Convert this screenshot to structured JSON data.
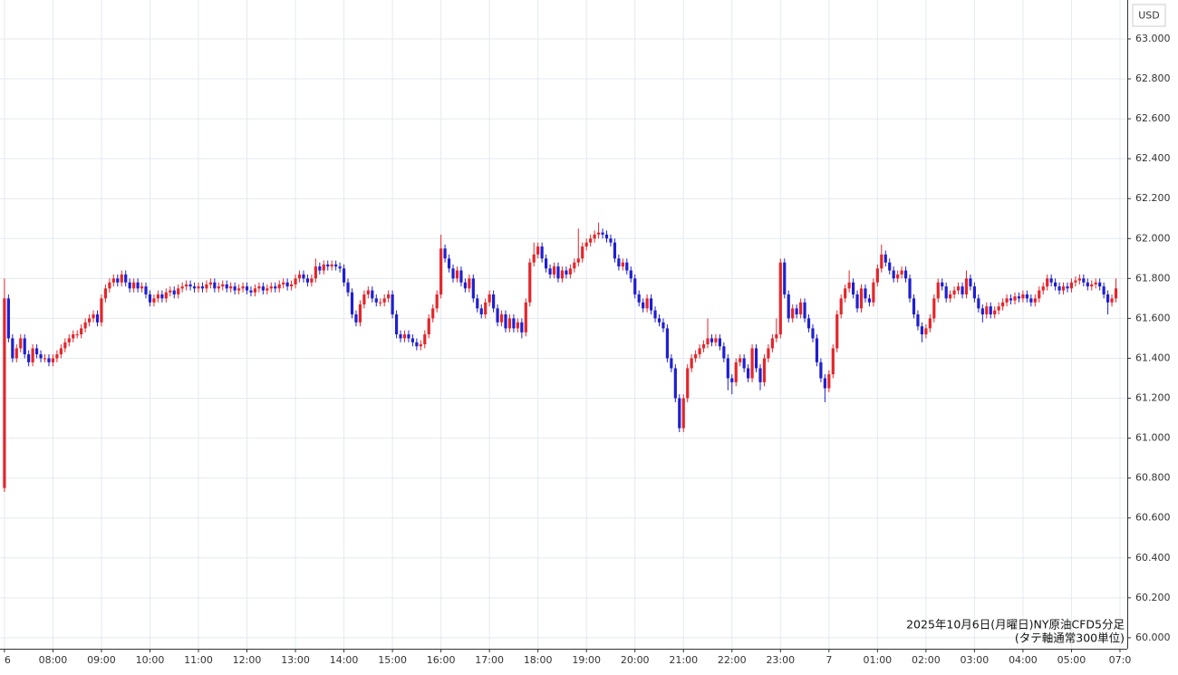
{
  "chart_data": {
    "type": "candlestick",
    "currency": "USD",
    "annotation": [
      "2025年10月6日(月曜日)NY原油CFD5分足",
      "(タテ軸通常300単位)"
    ],
    "up_color": "#e3262b",
    "down_color": "#1f1fcf",
    "grid": true,
    "ylim": [
      59.945,
      63.195
    ],
    "yticks": [
      {
        "value": 60,
        "label": "60.000"
      },
      {
        "value": 60.2,
        "label": "60.200"
      },
      {
        "value": 60.4,
        "label": "60.400"
      },
      {
        "value": 60.6,
        "label": "60.600"
      },
      {
        "value": 60.8,
        "label": "60.800"
      },
      {
        "value": 61,
        "label": "61.000"
      },
      {
        "value": 61.2,
        "label": "61.200"
      },
      {
        "value": 61.4,
        "label": "61.400"
      },
      {
        "value": 61.6,
        "label": "61.600"
      },
      {
        "value": 61.8,
        "label": "61.800"
      },
      {
        "value": 62,
        "label": "62.000"
      },
      {
        "value": 62.2,
        "label": "62.200"
      },
      {
        "value": 62.4,
        "label": "62.400"
      },
      {
        "value": 62.6,
        "label": "62.600"
      },
      {
        "value": 62.8,
        "label": "62.800"
      },
      {
        "value": 63,
        "label": "63.000"
      }
    ],
    "xlim": [
      -1.1,
      277.8
    ],
    "xticks": [
      {
        "value": 0,
        "label": "6"
      },
      {
        "value": 12,
        "label": "08:00"
      },
      {
        "value": 24,
        "label": "09:00"
      },
      {
        "value": 36,
        "label": "10:00"
      },
      {
        "value": 48,
        "label": "11:00"
      },
      {
        "value": 60,
        "label": "12:00"
      },
      {
        "value": 72,
        "label": "13:00"
      },
      {
        "value": 84,
        "label": "14:00"
      },
      {
        "value": 96,
        "label": "15:00"
      },
      {
        "value": 108,
        "label": "16:00"
      },
      {
        "value": 120,
        "label": "17:00"
      },
      {
        "value": 132,
        "label": "18:00"
      },
      {
        "value": 144,
        "label": "19:00"
      },
      {
        "value": 156,
        "label": "20:00"
      },
      {
        "value": 168,
        "label": "21:00"
      },
      {
        "value": 180,
        "label": "22:00"
      },
      {
        "value": 192,
        "label": "23:00"
      },
      {
        "value": 204,
        "label": "7"
      },
      {
        "value": 216,
        "label": "01:00"
      },
      {
        "value": 228,
        "label": "02:00"
      },
      {
        "value": 240,
        "label": "03:00"
      },
      {
        "value": 252,
        "label": "04:00"
      },
      {
        "value": 264,
        "label": "05:00"
      },
      {
        "value": 276,
        "label": "07:0"
      }
    ],
    "open": [
      60.75,
      61.7,
      61.5,
      61.4,
      61.45,
      61.5,
      61.42,
      61.38,
      61.45,
      61.42,
      61.4,
      61.4,
      61.38,
      61.4,
      61.42,
      61.45,
      61.48,
      61.5,
      61.52,
      61.52,
      61.55,
      61.58,
      61.6,
      61.62,
      61.58,
      61.7,
      61.75,
      61.78,
      61.8,
      61.78,
      61.82,
      61.78,
      61.75,
      61.78,
      61.75,
      61.76,
      61.72,
      61.68,
      61.7,
      61.72,
      61.7,
      61.73,
      61.74,
      61.72,
      61.75,
      61.76,
      61.77,
      61.76,
      61.75,
      61.76,
      61.75,
      61.77,
      61.78,
      61.75,
      61.76,
      61.77,
      61.75,
      61.76,
      61.74,
      61.75,
      61.76,
      61.74,
      61.73,
      61.75,
      61.76,
      61.74,
      61.75,
      61.76,
      61.75,
      61.77,
      61.78,
      61.76,
      61.77,
      61.8,
      61.82,
      61.8,
      61.78,
      61.8,
      61.86,
      61.84,
      61.87,
      61.86,
      61.87,
      61.86,
      61.85,
      61.78,
      61.73,
      61.62,
      61.58,
      61.67,
      61.72,
      61.74,
      61.7,
      61.68,
      61.68,
      61.7,
      61.72,
      61.62,
      61.52,
      61.5,
      61.52,
      61.5,
      61.48,
      61.46,
      61.47,
      61.52,
      61.6,
      61.65,
      61.72,
      61.95,
      61.9,
      61.85,
      61.8,
      61.84,
      61.78,
      61.75,
      61.8,
      61.7,
      61.65,
      61.62,
      61.68,
      61.72,
      61.65,
      61.58,
      61.62,
      61.55,
      61.6,
      61.55,
      61.58,
      61.53,
      61.68,
      61.88,
      61.92,
      61.96,
      61.9,
      61.85,
      61.82,
      61.86,
      61.8,
      61.84,
      61.82,
      61.85,
      61.88,
      61.9,
      61.96,
      61.98,
      62.0,
      62.02,
      62.03,
      62.02,
      62.0,
      61.98,
      61.9,
      61.86,
      61.88,
      61.84,
      61.8,
      61.72,
      61.68,
      61.65,
      61.7,
      61.64,
      61.6,
      61.58,
      61.55,
      61.4,
      61.35,
      61.2,
      61.05,
      61.2,
      61.35,
      61.4,
      61.42,
      61.45,
      61.47,
      61.5,
      61.48,
      61.5,
      61.46,
      61.4,
      61.3,
      61.28,
      61.38,
      61.4,
      61.35,
      61.3,
      61.45,
      61.35,
      61.28,
      61.4,
      61.45,
      61.5,
      61.52,
      61.88,
      61.72,
      61.6,
      61.65,
      61.62,
      61.68,
      61.6,
      61.55,
      61.5,
      61.38,
      61.3,
      61.25,
      61.32,
      61.45,
      61.62,
      61.7,
      61.75,
      61.78,
      61.72,
      61.65,
      61.75,
      61.7,
      61.68,
      61.78,
      61.85,
      61.92,
      61.88,
      61.84,
      61.8,
      61.82,
      61.84,
      61.8,
      61.7,
      61.62,
      61.56,
      61.52,
      61.55,
      61.6,
      61.7,
      61.78,
      61.76,
      61.7,
      61.72,
      61.74,
      61.76,
      61.72,
      61.8,
      61.76,
      61.7,
      61.65,
      61.62,
      61.66,
      61.62,
      61.64,
      61.66,
      61.68,
      61.7,
      61.69,
      61.71,
      61.7,
      61.72,
      61.7,
      61.68,
      61.7,
      61.74,
      61.76,
      61.8,
      61.78,
      61.76,
      61.74,
      61.76,
      61.75,
      61.78,
      61.79,
      61.8,
      61.78,
      61.76,
      61.77,
      61.78,
      61.76,
      61.72,
      61.68,
      61.7
    ],
    "high": [
      61.8,
      61.72,
      61.52,
      61.47,
      61.52,
      61.52,
      61.44,
      61.47,
      61.47,
      61.44,
      61.42,
      61.42,
      61.42,
      61.44,
      61.47,
      61.5,
      61.52,
      61.54,
      61.54,
      61.57,
      61.6,
      61.62,
      61.64,
      61.64,
      61.72,
      61.77,
      61.8,
      61.82,
      61.82,
      61.84,
      61.84,
      61.8,
      61.8,
      61.8,
      61.78,
      61.78,
      61.74,
      61.72,
      61.74,
      61.74,
      61.75,
      61.76,
      61.76,
      61.77,
      61.78,
      61.79,
      61.79,
      61.78,
      61.78,
      61.78,
      61.79,
      61.8,
      61.8,
      61.78,
      61.79,
      61.79,
      61.78,
      61.78,
      61.77,
      61.78,
      61.78,
      61.76,
      61.77,
      61.78,
      61.78,
      61.77,
      61.78,
      61.78,
      61.79,
      61.8,
      61.8,
      61.79,
      61.82,
      61.84,
      61.84,
      61.82,
      61.82,
      61.9,
      61.88,
      61.89,
      61.89,
      61.89,
      61.89,
      61.88,
      61.87,
      61.8,
      61.75,
      61.64,
      61.69,
      61.74,
      61.76,
      61.76,
      61.72,
      61.7,
      61.72,
      61.74,
      61.74,
      61.64,
      61.54,
      61.54,
      61.54,
      61.52,
      61.5,
      61.49,
      61.54,
      61.62,
      61.67,
      61.74,
      62.02,
      61.97,
      61.92,
      61.87,
      61.86,
      61.86,
      61.8,
      61.82,
      61.82,
      61.72,
      61.67,
      61.7,
      61.74,
      61.74,
      61.67,
      61.64,
      61.64,
      61.62,
      61.62,
      61.6,
      61.6,
      61.7,
      61.9,
      61.98,
      61.98,
      61.98,
      61.92,
      61.87,
      61.88,
      61.88,
      61.86,
      61.86,
      61.87,
      61.9,
      62.05,
      61.98,
      62.0,
      62.02,
      62.04,
      62.08,
      62.05,
      62.04,
      62.02,
      62.0,
      61.92,
      61.9,
      61.9,
      61.86,
      61.82,
      61.74,
      61.7,
      61.72,
      61.72,
      61.66,
      61.62,
      61.6,
      61.57,
      61.42,
      61.37,
      61.22,
      61.22,
      61.37,
      61.42,
      61.44,
      61.47,
      61.49,
      61.6,
      61.52,
      61.52,
      61.52,
      61.48,
      61.42,
      61.32,
      61.4,
      61.42,
      61.42,
      61.37,
      61.47,
      61.47,
      61.37,
      61.42,
      61.47,
      61.52,
      61.6,
      61.9,
      61.9,
      61.74,
      61.67,
      61.67,
      61.7,
      61.7,
      61.62,
      61.57,
      61.52,
      61.4,
      61.32,
      61.34,
      61.47,
      61.64,
      61.72,
      61.77,
      61.84,
      61.8,
      61.74,
      61.77,
      61.77,
      61.72,
      61.8,
      61.87,
      61.97,
      61.94,
      61.9,
      61.86,
      61.84,
      61.86,
      61.86,
      61.82,
      61.72,
      61.64,
      61.58,
      61.57,
      61.62,
      61.72,
      61.8,
      61.8,
      61.78,
      61.74,
      61.76,
      61.78,
      61.78,
      61.84,
      61.82,
      61.78,
      61.72,
      61.67,
      61.68,
      61.68,
      61.66,
      61.68,
      61.7,
      61.72,
      61.72,
      61.73,
      61.73,
      61.74,
      61.74,
      61.72,
      61.72,
      61.76,
      61.78,
      61.82,
      61.82,
      61.8,
      61.78,
      61.78,
      61.78,
      61.8,
      61.81,
      61.82,
      61.82,
      61.8,
      61.79,
      61.8,
      61.8,
      61.78,
      61.74,
      61.72,
      61.8
    ],
    "low": [
      60.73,
      61.48,
      61.38,
      61.38,
      61.43,
      61.4,
      61.36,
      61.36,
      61.4,
      61.38,
      61.38,
      61.36,
      61.36,
      61.38,
      61.4,
      61.43,
      61.46,
      61.48,
      61.5,
      61.5,
      61.53,
      61.56,
      61.58,
      61.56,
      61.56,
      61.68,
      61.73,
      61.76,
      61.76,
      61.76,
      61.76,
      61.73,
      61.73,
      61.73,
      61.73,
      61.7,
      61.66,
      61.66,
      61.68,
      61.68,
      61.68,
      61.71,
      61.7,
      61.7,
      61.73,
      61.74,
      61.74,
      61.73,
      61.73,
      61.73,
      61.73,
      61.75,
      61.73,
      61.73,
      61.74,
      61.73,
      61.73,
      61.72,
      61.72,
      61.73,
      61.72,
      61.71,
      61.71,
      61.73,
      61.72,
      61.72,
      61.73,
      61.73,
      61.73,
      61.75,
      61.74,
      61.74,
      61.75,
      61.78,
      61.78,
      61.76,
      61.76,
      61.78,
      61.82,
      61.82,
      61.84,
      61.84,
      61.84,
      61.83,
      61.76,
      61.71,
      61.6,
      61.56,
      61.56,
      61.65,
      61.7,
      61.68,
      61.66,
      61.66,
      61.66,
      61.68,
      61.6,
      61.5,
      61.48,
      61.48,
      61.48,
      61.46,
      61.44,
      61.44,
      61.45,
      61.5,
      61.58,
      61.63,
      61.7,
      61.88,
      61.83,
      61.78,
      61.78,
      61.76,
      61.73,
      61.73,
      61.68,
      61.63,
      61.6,
      61.6,
      61.66,
      61.63,
      61.56,
      61.56,
      61.53,
      61.53,
      61.53,
      61.53,
      61.5,
      61.51,
      61.66,
      61.86,
      61.9,
      61.88,
      61.83,
      61.8,
      61.8,
      61.78,
      61.78,
      61.8,
      61.8,
      61.83,
      61.86,
      61.88,
      61.94,
      61.96,
      61.98,
      62.0,
      62.0,
      61.98,
      61.96,
      61.88,
      61.84,
      61.84,
      61.82,
      61.78,
      61.7,
      61.66,
      61.63,
      61.63,
      61.62,
      61.58,
      61.56,
      61.53,
      61.38,
      61.33,
      61.18,
      61.03,
      61.03,
      61.18,
      61.33,
      61.38,
      61.4,
      61.43,
      61.45,
      61.46,
      61.46,
      61.44,
      61.38,
      61.24,
      61.22,
      61.26,
      61.36,
      61.33,
      61.28,
      61.28,
      61.33,
      61.24,
      61.26,
      61.38,
      61.43,
      61.48,
      61.5,
      61.7,
      61.58,
      61.58,
      61.6,
      61.6,
      61.58,
      61.53,
      61.48,
      61.36,
      61.28,
      61.18,
      61.23,
      61.3,
      61.43,
      61.6,
      61.68,
      61.73,
      61.7,
      61.63,
      61.63,
      61.68,
      61.66,
      61.66,
      61.76,
      61.83,
      61.86,
      61.82,
      61.78,
      61.78,
      61.8,
      61.78,
      61.68,
      61.6,
      61.54,
      61.48,
      61.5,
      61.53,
      61.58,
      61.68,
      61.74,
      61.68,
      61.68,
      61.7,
      61.72,
      61.7,
      61.7,
      61.74,
      61.68,
      61.63,
      61.58,
      61.6,
      61.6,
      61.6,
      61.62,
      61.64,
      61.66,
      61.67,
      61.67,
      61.68,
      61.68,
      61.68,
      61.66,
      61.66,
      61.68,
      61.72,
      61.74,
      61.76,
      61.74,
      61.72,
      61.72,
      61.73,
      61.73,
      61.76,
      61.77,
      61.76,
      61.74,
      61.74,
      61.75,
      61.74,
      61.7,
      61.62,
      61.66,
      61.68
    ],
    "close": [
      61.7,
      61.5,
      61.4,
      61.45,
      61.5,
      61.42,
      61.38,
      61.45,
      61.42,
      61.4,
      61.4,
      61.38,
      61.4,
      61.42,
      61.45,
      61.48,
      61.5,
      61.52,
      61.52,
      61.55,
      61.58,
      61.6,
      61.62,
      61.58,
      61.7,
      61.75,
      61.78,
      61.8,
      61.78,
      61.82,
      61.78,
      61.75,
      61.78,
      61.75,
      61.76,
      61.72,
      61.68,
      61.7,
      61.72,
      61.7,
      61.73,
      61.74,
      61.72,
      61.75,
      61.76,
      61.77,
      61.76,
      61.75,
      61.76,
      61.75,
      61.77,
      61.78,
      61.75,
      61.76,
      61.77,
      61.75,
      61.76,
      61.74,
      61.75,
      61.76,
      61.74,
      61.73,
      61.75,
      61.76,
      61.74,
      61.75,
      61.76,
      61.75,
      61.77,
      61.78,
      61.76,
      61.77,
      61.8,
      61.82,
      61.8,
      61.78,
      61.8,
      61.86,
      61.84,
      61.87,
      61.86,
      61.87,
      61.86,
      61.85,
      61.78,
      61.73,
      61.62,
      61.58,
      61.67,
      61.72,
      61.74,
      61.7,
      61.68,
      61.68,
      61.7,
      61.72,
      61.62,
      61.52,
      61.5,
      61.52,
      61.5,
      61.48,
      61.46,
      61.47,
      61.52,
      61.6,
      61.65,
      61.72,
      61.95,
      61.9,
      61.85,
      61.8,
      61.84,
      61.78,
      61.75,
      61.8,
      61.7,
      61.65,
      61.62,
      61.68,
      61.72,
      61.65,
      61.58,
      61.62,
      61.55,
      61.6,
      61.55,
      61.58,
      61.53,
      61.68,
      61.88,
      61.92,
      61.96,
      61.9,
      61.85,
      61.82,
      61.86,
      61.8,
      61.84,
      61.82,
      61.85,
      61.88,
      61.9,
      61.96,
      61.98,
      62.0,
      62.02,
      62.03,
      62.02,
      62.0,
      61.98,
      61.9,
      61.86,
      61.88,
      61.84,
      61.8,
      61.72,
      61.68,
      61.65,
      61.7,
      61.64,
      61.6,
      61.58,
      61.55,
      61.4,
      61.35,
      61.2,
      61.05,
      61.2,
      61.35,
      61.4,
      61.42,
      61.45,
      61.47,
      61.5,
      61.48,
      61.5,
      61.46,
      61.4,
      61.3,
      61.28,
      61.38,
      61.4,
      61.35,
      61.3,
      61.45,
      61.35,
      61.28,
      61.4,
      61.45,
      61.5,
      61.52,
      61.88,
      61.72,
      61.6,
      61.65,
      61.62,
      61.68,
      61.6,
      61.55,
      61.5,
      61.38,
      61.3,
      61.25,
      61.32,
      61.45,
      61.62,
      61.7,
      61.75,
      61.78,
      61.72,
      61.65,
      61.75,
      61.7,
      61.68,
      61.78,
      61.85,
      61.92,
      61.88,
      61.84,
      61.8,
      61.82,
      61.84,
      61.8,
      61.7,
      61.62,
      61.56,
      61.52,
      61.55,
      61.6,
      61.7,
      61.78,
      61.76,
      61.7,
      61.72,
      61.74,
      61.76,
      61.72,
      61.8,
      61.76,
      61.7,
      61.65,
      61.62,
      61.66,
      61.62,
      61.64,
      61.66,
      61.68,
      61.7,
      61.69,
      61.71,
      61.7,
      61.72,
      61.7,
      61.68,
      61.7,
      61.74,
      61.76,
      61.8,
      61.78,
      61.76,
      61.74,
      61.76,
      61.75,
      61.78,
      61.79,
      61.8,
      61.78,
      61.76,
      61.77,
      61.78,
      61.76,
      61.72,
      61.68,
      61.7,
      61.75
    ]
  }
}
